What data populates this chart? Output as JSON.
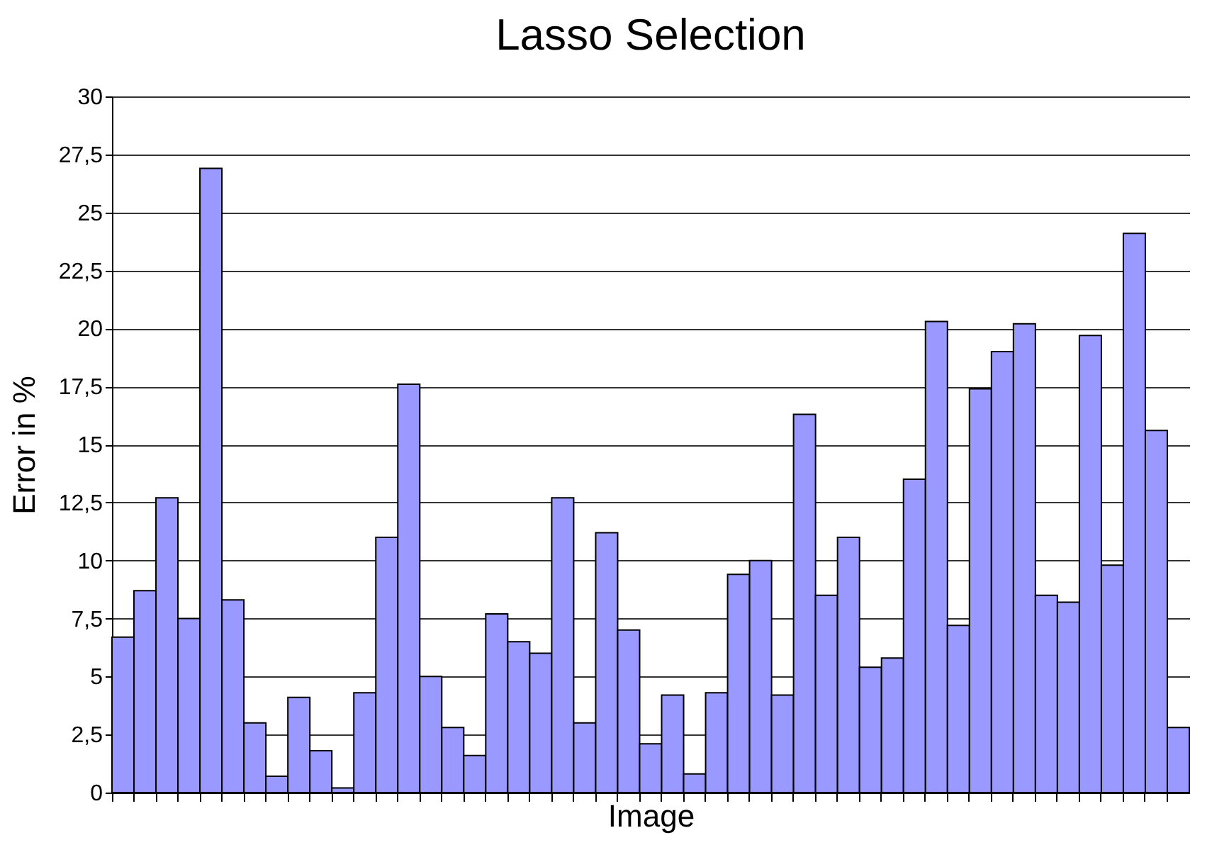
{
  "chart_data": {
    "type": "bar",
    "title": "Lasso Selection",
    "xlabel": "Image",
    "ylabel": "Error in %",
    "categories": [
      null,
      null,
      null,
      null,
      null,
      null,
      null,
      null,
      null,
      null,
      null,
      null,
      null,
      null,
      null,
      null,
      null,
      null,
      null,
      null,
      null,
      null,
      null,
      null,
      null,
      null,
      null,
      null,
      null,
      null,
      null,
      null,
      null,
      null,
      null,
      null,
      null,
      null,
      null,
      null,
      null,
      null,
      null,
      null,
      null,
      null,
      null,
      null,
      null
    ],
    "values": [
      6.7,
      8.7,
      12.7,
      7.5,
      26.9,
      8.3,
      3.0,
      0.7,
      4.1,
      1.8,
      0.2,
      4.3,
      11.0,
      17.6,
      5.0,
      2.8,
      1.6,
      7.7,
      6.5,
      6.0,
      12.7,
      3.0,
      11.2,
      7.0,
      2.1,
      4.2,
      0.8,
      4.3,
      9.4,
      10.0,
      4.2,
      16.3,
      8.5,
      11.0,
      5.4,
      5.8,
      13.5,
      20.3,
      7.2,
      17.4,
      19.0,
      20.2,
      8.5,
      8.2,
      19.7,
      9.8,
      24.1,
      15.6,
      2.8
    ],
    "color": "#9999ff",
    "ylim": [
      0,
      30
    ],
    "yticks": [
      0,
      {
        "value": 2.5,
        "label": "2,5"
      },
      5,
      {
        "value": 7.5,
        "label": "7,5"
      },
      10,
      {
        "value": 12.5,
        "label": "12,5"
      },
      15,
      {
        "value": 17.5,
        "label": "17,5"
      },
      20,
      {
        "value": 22.5,
        "label": "22,5"
      },
      25,
      {
        "value": 27.5,
        "label": "27,5"
      },
      30
    ],
    "grid": "y"
  }
}
